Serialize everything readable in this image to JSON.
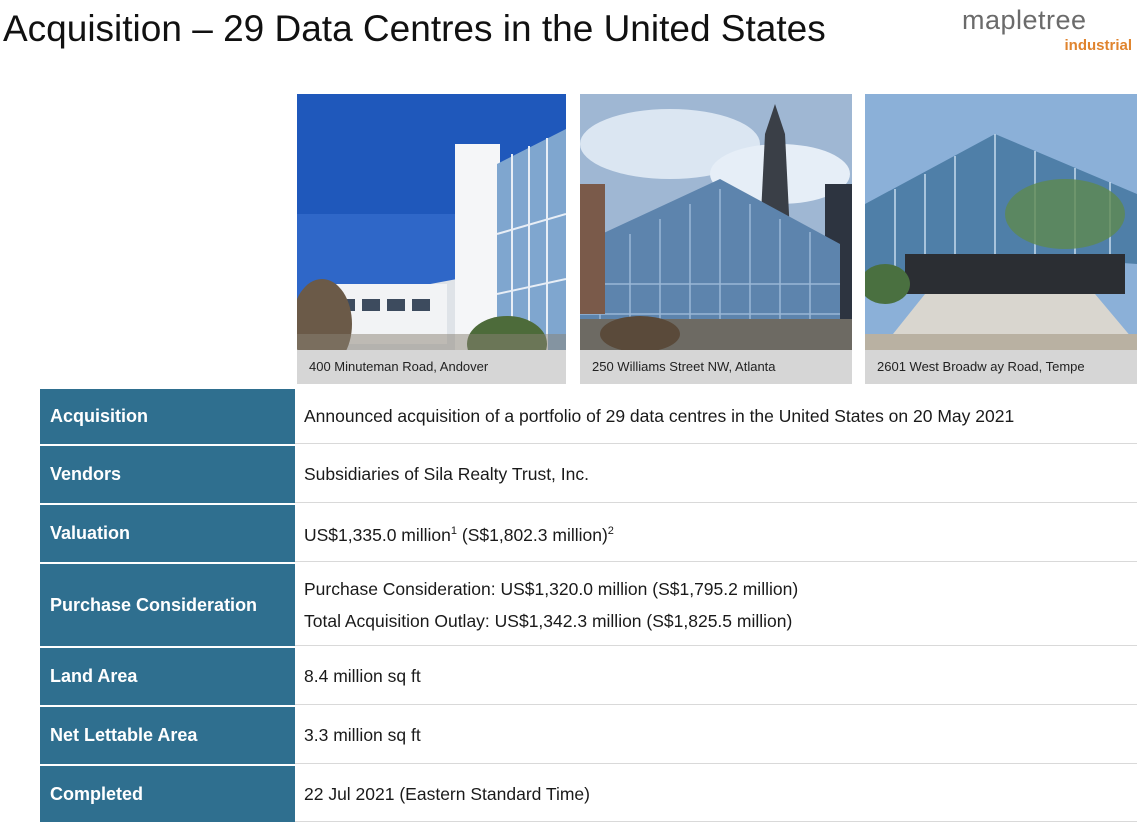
{
  "header": {
    "title": "Acquisition – 29 Data Centres in the United States",
    "logo_word": "mapletree",
    "logo_sub": "industrial"
  },
  "photos": [
    {
      "caption": "400 Minuteman  Road,  Andover"
    },
    {
      "caption": "250 Williams  Street NW,  Atlanta"
    },
    {
      "caption": "2601 West Broadw ay Road,  Tempe"
    }
  ],
  "table": {
    "rows": [
      {
        "label": "Acquisition",
        "lines": [
          "Announced  acquisition  of a portfolio of 29 data centres in the United States on 20 May  2021"
        ]
      },
      {
        "label": "Vendors",
        "lines": [
          "Subsidiaries of Sila Realty Trust, Inc."
        ]
      },
      {
        "label": "Valuation",
        "v_main": "US$1,335.0  million",
        "v_sup1": "1",
        "v_mid": " (S$1,802.3  million)",
        "v_sup2": "2"
      },
      {
        "label": "Purchase  Consideration",
        "lines": [
          "Purchase Consideration:  US$1,320.0  million  (S$1,795.2  million)",
          "Total Acquisition  Outlay:  US$1,342.3  million  (S$1,825.5  million)"
        ]
      },
      {
        "label": "Land Area",
        "lines": [
          "8.4  million  sq ft"
        ]
      },
      {
        "label": "Net Lettable Area",
        "lines": [
          "3.3  million  sq ft"
        ]
      },
      {
        "label": "Completed",
        "lines": [
          "22 Jul 2021 (Eastern  Standard  Time)"
        ]
      }
    ]
  },
  "colors": {
    "label_bg": "#2f6f8f",
    "logo_accent": "#e0842e"
  }
}
